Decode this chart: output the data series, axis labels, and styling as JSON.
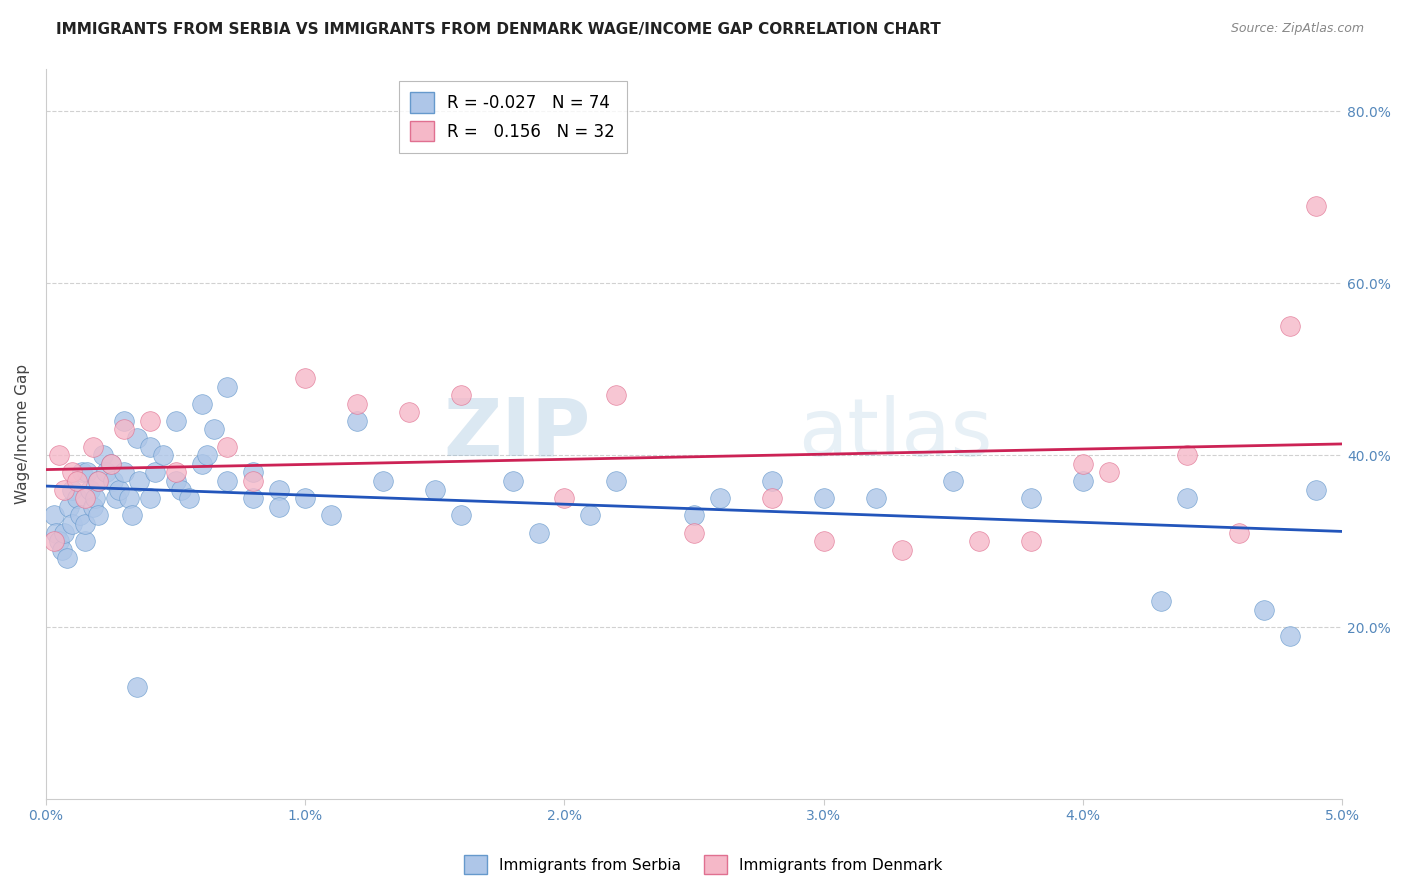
{
  "title": "IMMIGRANTS FROM SERBIA VS IMMIGRANTS FROM DENMARK WAGE/INCOME GAP CORRELATION CHART",
  "source": "Source: ZipAtlas.com",
  "ylabel": "Wage/Income Gap",
  "xlim": [
    0.0,
    0.05
  ],
  "ylim": [
    0.0,
    0.85
  ],
  "xtick_labels": [
    "0.0%",
    "1.0%",
    "2.0%",
    "3.0%",
    "4.0%",
    "5.0%"
  ],
  "xtick_values": [
    0.0,
    0.01,
    0.02,
    0.03,
    0.04,
    0.05
  ],
  "ytick_labels": [
    "20.0%",
    "40.0%",
    "60.0%",
    "80.0%"
  ],
  "ytick_values": [
    0.2,
    0.4,
    0.6,
    0.8
  ],
  "serbia_color": "#aec6e8",
  "denmark_color": "#f5b8c8",
  "serbia_edge": "#6699cc",
  "denmark_edge": "#e07090",
  "line_serbia_color": "#2255bb",
  "line_denmark_color": "#cc2255",
  "serbia_R": -0.027,
  "serbia_N": 74,
  "denmark_R": 0.156,
  "denmark_N": 32,
  "serbia_label": "Immigrants from Serbia",
  "denmark_label": "Immigrants from Denmark",
  "watermark_zip": "ZIP",
  "watermark_atlas": "atlas",
  "background_color": "#ffffff",
  "grid_color": "#cccccc",
  "axis_color": "#5588bb",
  "title_fontsize": 11,
  "serbia_points_x": [
    0.0003,
    0.0004,
    0.0005,
    0.0006,
    0.0007,
    0.0008,
    0.0009,
    0.001,
    0.001,
    0.0012,
    0.0013,
    0.0014,
    0.0015,
    0.0015,
    0.0016,
    0.0017,
    0.0018,
    0.0019,
    0.002,
    0.002,
    0.0022,
    0.0023,
    0.0025,
    0.0026,
    0.0027,
    0.0028,
    0.003,
    0.003,
    0.0032,
    0.0033,
    0.0035,
    0.0036,
    0.004,
    0.004,
    0.0042,
    0.0045,
    0.005,
    0.005,
    0.0052,
    0.0055,
    0.006,
    0.006,
    0.0062,
    0.0065,
    0.007,
    0.007,
    0.008,
    0.008,
    0.009,
    0.009,
    0.01,
    0.011,
    0.012,
    0.013,
    0.015,
    0.016,
    0.018,
    0.019,
    0.021,
    0.022,
    0.025,
    0.026,
    0.028,
    0.03,
    0.032,
    0.035,
    0.038,
    0.04,
    0.043,
    0.044,
    0.047,
    0.048,
    0.049,
    0.0035
  ],
  "serbia_points_y": [
    0.33,
    0.31,
    0.3,
    0.29,
    0.31,
    0.28,
    0.34,
    0.36,
    0.32,
    0.35,
    0.33,
    0.38,
    0.3,
    0.32,
    0.38,
    0.36,
    0.34,
    0.35,
    0.37,
    0.33,
    0.4,
    0.38,
    0.39,
    0.37,
    0.35,
    0.36,
    0.44,
    0.38,
    0.35,
    0.33,
    0.42,
    0.37,
    0.41,
    0.35,
    0.38,
    0.4,
    0.44,
    0.37,
    0.36,
    0.35,
    0.46,
    0.39,
    0.4,
    0.43,
    0.48,
    0.37,
    0.38,
    0.35,
    0.36,
    0.34,
    0.35,
    0.33,
    0.44,
    0.37,
    0.36,
    0.33,
    0.37,
    0.31,
    0.33,
    0.37,
    0.33,
    0.35,
    0.37,
    0.35,
    0.35,
    0.37,
    0.35,
    0.37,
    0.23,
    0.35,
    0.22,
    0.19,
    0.36,
    0.13
  ],
  "denmark_points_x": [
    0.0003,
    0.0005,
    0.0007,
    0.001,
    0.0012,
    0.0015,
    0.0018,
    0.002,
    0.0025,
    0.003,
    0.004,
    0.005,
    0.007,
    0.008,
    0.01,
    0.012,
    0.014,
    0.016,
    0.02,
    0.022,
    0.025,
    0.028,
    0.03,
    0.033,
    0.036,
    0.038,
    0.04,
    0.041,
    0.044,
    0.046,
    0.048,
    0.049
  ],
  "denmark_points_y": [
    0.3,
    0.4,
    0.36,
    0.38,
    0.37,
    0.35,
    0.41,
    0.37,
    0.39,
    0.43,
    0.44,
    0.38,
    0.41,
    0.37,
    0.49,
    0.46,
    0.45,
    0.47,
    0.35,
    0.47,
    0.31,
    0.35,
    0.3,
    0.29,
    0.3,
    0.3,
    0.39,
    0.38,
    0.4,
    0.31,
    0.55,
    0.69
  ]
}
